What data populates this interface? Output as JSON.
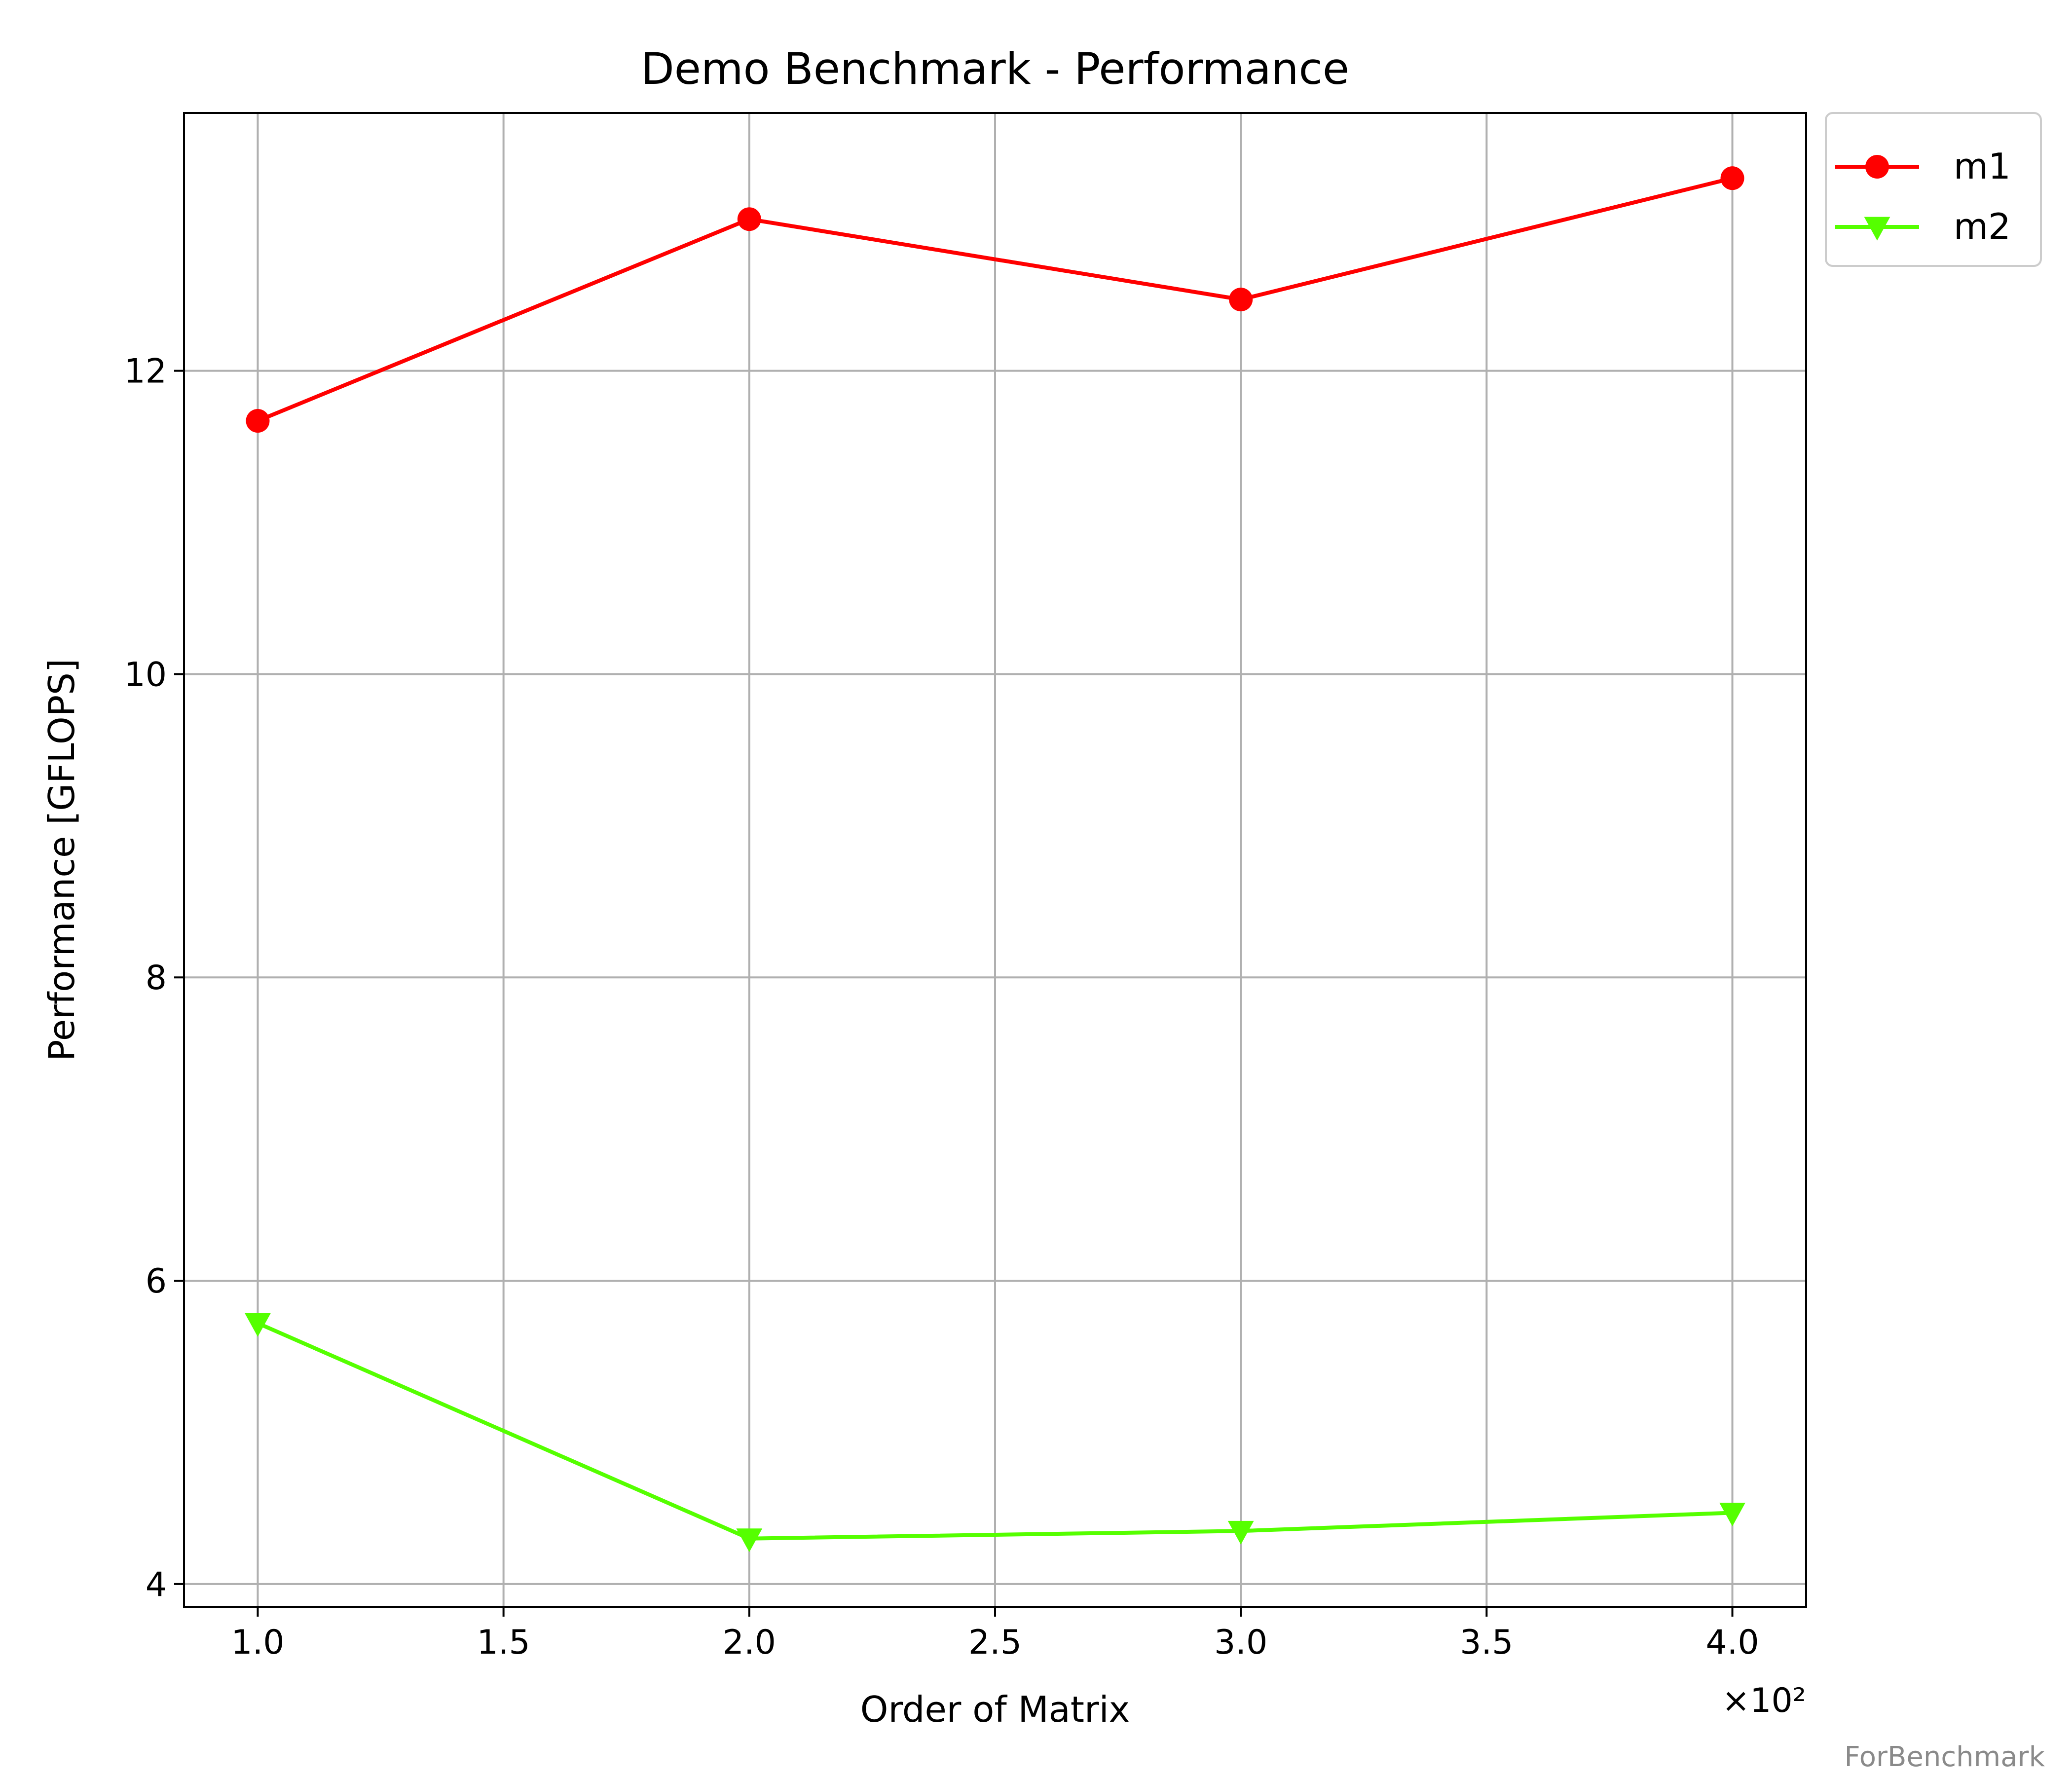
{
  "chart_data": {
    "type": "line",
    "title": "Demo Benchmark - Performance",
    "xlabel": "Order of Matrix",
    "ylabel": "Performance [GFLOPS]",
    "x_offset_label": "×10²",
    "x_ticks": [
      1.0,
      1.5,
      2.0,
      2.5,
      3.0,
      3.5,
      4.0
    ],
    "x_tick_labels": [
      "1.0",
      "1.5",
      "2.0",
      "2.5",
      "3.0",
      "3.5",
      "4.0"
    ],
    "y_ticks": [
      4,
      6,
      8,
      10,
      12
    ],
    "y_tick_labels": [
      "4",
      "6",
      "8",
      "10",
      "12"
    ],
    "xlim": [
      0.85,
      4.15
    ],
    "ylim": [
      3.85,
      13.7
    ],
    "grid": true,
    "legend_position": "outside-top-right",
    "series": [
      {
        "name": "m1",
        "color": "#ff0000",
        "marker": "circle",
        "x": [
          1,
          2,
          3,
          4
        ],
        "y": [
          11.67,
          13.0,
          12.47,
          13.27
        ]
      },
      {
        "name": "m2",
        "color": "#55ff00",
        "marker": "triangle-down",
        "x": [
          1,
          2,
          3,
          4
        ],
        "y": [
          5.72,
          4.3,
          4.35,
          4.47
        ]
      }
    ]
  },
  "watermark": "ForBenchmark"
}
